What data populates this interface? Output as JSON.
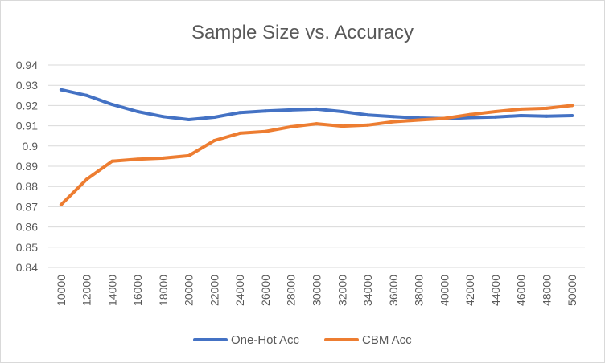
{
  "chart_data": {
    "type": "line",
    "title": "Sample Size vs. Accuracy",
    "xlabel": "",
    "ylabel": "",
    "categories": [
      "10000",
      "12000",
      "14000",
      "16000",
      "18000",
      "20000",
      "22000",
      "24000",
      "26000",
      "28000",
      "30000",
      "32000",
      "34000",
      "36000",
      "38000",
      "40000",
      "42000",
      "44000",
      "46000",
      "48000",
      "50000"
    ],
    "ylim": [
      0.84,
      0.94
    ],
    "yticks": [
      "0.84",
      "0.85",
      "0.86",
      "0.87",
      "0.88",
      "0.89",
      "0.9",
      "0.91",
      "0.92",
      "0.93",
      "0.94"
    ],
    "grid": true,
    "legend_position": "bottom",
    "series": [
      {
        "name": "One-Hot Acc",
        "color": "#4472c4",
        "values": [
          0.9278,
          0.925,
          0.9205,
          0.917,
          0.9145,
          0.913,
          0.9142,
          0.9165,
          0.9173,
          0.9178,
          0.9182,
          0.917,
          0.9153,
          0.9145,
          0.9138,
          0.9135,
          0.914,
          0.9143,
          0.915,
          0.9147,
          0.915
        ]
      },
      {
        "name": "CBM Acc",
        "color": "#ed7d31",
        "values": [
          0.871,
          0.8835,
          0.8925,
          0.8935,
          0.894,
          0.8952,
          0.9027,
          0.9063,
          0.9072,
          0.9095,
          0.911,
          0.9098,
          0.9103,
          0.912,
          0.9128,
          0.9136,
          0.9155,
          0.917,
          0.9182,
          0.9186,
          0.92
        ]
      }
    ]
  }
}
